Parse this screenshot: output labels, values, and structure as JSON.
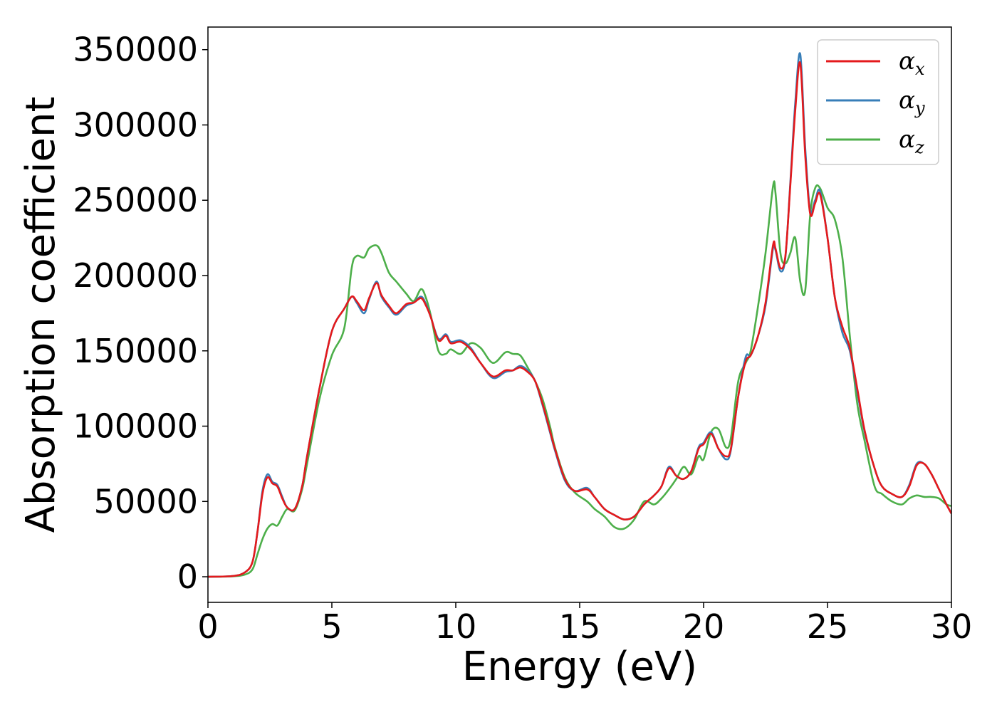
{
  "chart_data": {
    "type": "line",
    "xlabel": "Energy (eV)",
    "ylabel": "Absorption coefficient",
    "xlim": [
      0,
      30
    ],
    "ylim": [
      -17000,
      365000
    ],
    "xticks": [
      "0",
      "5",
      "10",
      "15",
      "20",
      "25",
      "30"
    ],
    "yticks": [
      "0",
      "50000",
      "100000",
      "150000",
      "200000",
      "250000",
      "300000",
      "350000"
    ],
    "grid": false,
    "legend_position": "top-right",
    "colors": {
      "alpha_x": "#e41a1c",
      "alpha_y": "#377eb8",
      "alpha_z": "#4daf4a"
    },
    "series": [
      {
        "name": "α_x",
        "symbol": "α",
        "subscript": "x",
        "color": "#e41a1c",
        "x": [
          0,
          1,
          1.5,
          1.8,
          2.0,
          2.2,
          2.4,
          2.6,
          2.8,
          3.0,
          3.2,
          3.5,
          3.8,
          4.0,
          4.5,
          5.0,
          5.5,
          5.8,
          6.0,
          6.3,
          6.5,
          6.8,
          7.0,
          7.3,
          7.6,
          8.0,
          8.3,
          8.6,
          8.8,
          9.0,
          9.3,
          9.6,
          9.8,
          10.2,
          10.6,
          11.0,
          11.5,
          12.0,
          12.3,
          12.6,
          12.9,
          13.2,
          13.5,
          13.8,
          14.0,
          14.4,
          14.8,
          15.3,
          15.6,
          16.0,
          16.4,
          16.8,
          17.2,
          17.6,
          18.0,
          18.3,
          18.6,
          18.9,
          19.2,
          19.5,
          19.8,
          20.0,
          20.3,
          20.6,
          20.9,
          21.1,
          21.4,
          21.7,
          21.9,
          22.2,
          22.5,
          22.8,
          22.9,
          23.1,
          23.3,
          23.5,
          23.7,
          23.9,
          24.1,
          24.3,
          24.5,
          24.7,
          25.0,
          25.3,
          25.6,
          25.9,
          26.2,
          26.5,
          26.9,
          27.2,
          27.6,
          28.0,
          28.3,
          28.6,
          28.9,
          29.2,
          29.5,
          29.8,
          30.0
        ],
        "y": [
          0,
          500,
          3000,
          10000,
          30000,
          55000,
          66000,
          62000,
          60000,
          52000,
          46000,
          45000,
          60000,
          80000,
          125000,
          163000,
          178000,
          186000,
          183000,
          177000,
          185000,
          195000,
          187000,
          180000,
          175000,
          181000,
          182000,
          185000,
          180000,
          172000,
          157000,
          160000,
          155000,
          156000,
          151000,
          142000,
          133000,
          137000,
          137000,
          139000,
          136000,
          130000,
          115000,
          97000,
          85000,
          65000,
          57000,
          58000,
          53000,
          45000,
          41000,
          38000,
          40000,
          48000,
          54000,
          60000,
          72000,
          67000,
          65000,
          70000,
          85000,
          88000,
          95000,
          85000,
          80000,
          85000,
          120000,
          143000,
          147000,
          160000,
          182000,
          220000,
          218000,
          205000,
          213000,
          260000,
          310000,
          341000,
          280000,
          241000,
          248000,
          254000,
          225000,
          185000,
          166000,
          152000,
          125000,
          97000,
          72000,
          60000,
          55000,
          53000,
          60000,
          74000,
          75000,
          68000,
          58000,
          48000,
          42000
        ]
      },
      {
        "name": "α_y",
        "symbol": "α",
        "subscript": "y",
        "color": "#377eb8",
        "x": [
          0,
          1,
          1.5,
          1.8,
          2.0,
          2.2,
          2.4,
          2.6,
          2.8,
          3.0,
          3.2,
          3.5,
          3.8,
          4.0,
          4.5,
          5.0,
          5.5,
          5.8,
          6.0,
          6.3,
          6.5,
          6.8,
          7.0,
          7.3,
          7.6,
          8.0,
          8.3,
          8.6,
          8.8,
          9.0,
          9.3,
          9.6,
          9.8,
          10.2,
          10.6,
          11.0,
          11.5,
          12.0,
          12.3,
          12.6,
          12.9,
          13.2,
          13.5,
          13.8,
          14.0,
          14.4,
          14.8,
          15.3,
          15.6,
          16.0,
          16.4,
          16.8,
          17.2,
          17.6,
          18.0,
          18.3,
          18.6,
          18.9,
          19.2,
          19.5,
          19.8,
          20.0,
          20.3,
          20.6,
          20.9,
          21.1,
          21.4,
          21.7,
          21.9,
          22.2,
          22.5,
          22.8,
          22.9,
          23.1,
          23.3,
          23.5,
          23.7,
          23.9,
          24.1,
          24.3,
          24.5,
          24.7,
          25.0,
          25.3,
          25.6,
          25.9,
          26.2,
          26.5,
          26.9,
          27.2,
          27.6,
          28.0,
          28.3,
          28.6,
          28.9,
          29.2,
          29.5,
          29.8,
          30.0
        ],
        "y": [
          0,
          500,
          3000,
          10000,
          30000,
          57000,
          68000,
          63000,
          61000,
          53000,
          46000,
          45000,
          60000,
          80000,
          125000,
          163000,
          178000,
          186000,
          182000,
          175000,
          184000,
          196000,
          186000,
          179000,
          174000,
          180000,
          182000,
          186000,
          181000,
          172000,
          158000,
          161000,
          156000,
          157000,
          152000,
          142000,
          132000,
          136000,
          137000,
          140000,
          137000,
          130000,
          114000,
          96000,
          84000,
          64000,
          57000,
          59000,
          53000,
          45000,
          41000,
          38000,
          40000,
          48000,
          54000,
          60000,
          73000,
          67000,
          65000,
          70000,
          86000,
          89000,
          96000,
          85000,
          78000,
          84000,
          120000,
          146000,
          147000,
          160000,
          180000,
          218000,
          217000,
          203000,
          212000,
          262000,
          315000,
          347000,
          285000,
          243000,
          250000,
          256000,
          225000,
          185000,
          162000,
          150000,
          123000,
          96000,
          72000,
          60000,
          55000,
          53000,
          61000,
          75000,
          75000,
          68000,
          58000,
          48000,
          42000
        ]
      },
      {
        "name": "α_z",
        "symbol": "α",
        "subscript": "z",
        "color": "#4daf4a",
        "x": [
          0,
          1,
          1.5,
          1.8,
          2.0,
          2.2,
          2.4,
          2.6,
          2.8,
          3.0,
          3.2,
          3.5,
          3.8,
          4.0,
          4.5,
          5.0,
          5.5,
          5.8,
          6.0,
          6.3,
          6.5,
          6.8,
          7.0,
          7.3,
          7.6,
          8.0,
          8.3,
          8.6,
          8.8,
          9.0,
          9.3,
          9.6,
          9.8,
          10.2,
          10.6,
          11.0,
          11.5,
          12.0,
          12.3,
          12.6,
          12.9,
          13.2,
          13.5,
          13.8,
          14.0,
          14.4,
          14.8,
          15.3,
          15.6,
          16.0,
          16.4,
          16.8,
          17.2,
          17.6,
          18.0,
          18.3,
          18.6,
          18.9,
          19.2,
          19.5,
          19.8,
          20.0,
          20.3,
          20.6,
          20.9,
          21.1,
          21.4,
          21.7,
          21.9,
          22.2,
          22.5,
          22.8,
          22.9,
          23.1,
          23.3,
          23.5,
          23.7,
          23.9,
          24.1,
          24.3,
          24.5,
          24.7,
          25.0,
          25.3,
          25.6,
          25.9,
          26.2,
          26.5,
          26.9,
          27.2,
          27.6,
          28.0,
          28.3,
          28.6,
          28.9,
          29.2,
          29.5,
          29.8,
          30.0
        ],
        "y": [
          0,
          300,
          1500,
          5000,
          15000,
          25000,
          32000,
          35000,
          34000,
          40000,
          45000,
          44000,
          58000,
          75000,
          118000,
          147000,
          165000,
          205000,
          213000,
          212000,
          218000,
          220000,
          215000,
          202000,
          196000,
          188000,
          183000,
          191000,
          185000,
          173000,
          150000,
          148000,
          151000,
          148000,
          155000,
          152000,
          142000,
          149000,
          148000,
          147000,
          139000,
          130000,
          118000,
          100000,
          86000,
          66000,
          56000,
          50000,
          45000,
          40000,
          33000,
          32000,
          38000,
          50000,
          48000,
          52000,
          58000,
          65000,
          73000,
          68000,
          80000,
          78000,
          96000,
          98000,
          86000,
          92000,
          130000,
          142000,
          150000,
          180000,
          215000,
          259000,
          255000,
          215000,
          208000,
          215000,
          225000,
          196000,
          190000,
          240000,
          258000,
          258000,
          245000,
          237000,
          212000,
          160000,
          115000,
          90000,
          60000,
          55000,
          50000,
          48000,
          52000,
          54000,
          53000,
          53000,
          52000,
          48000,
          47000
        ]
      }
    ]
  }
}
